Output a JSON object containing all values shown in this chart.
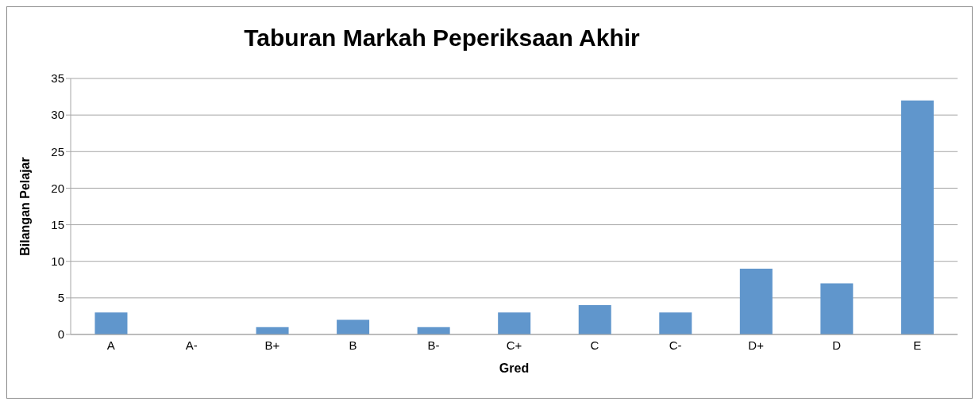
{
  "chart_data": {
    "type": "bar",
    "title": "Taburan Markah Peperiksaan Akhir",
    "xlabel": "Gred",
    "ylabel": "Bilangan Pelajar",
    "categories": [
      "A",
      "A-",
      "B+",
      "B",
      "B-",
      "C+",
      "C",
      "C-",
      "D+",
      "D",
      "E"
    ],
    "values": [
      3,
      0,
      1,
      2,
      1,
      3,
      4,
      3,
      9,
      7,
      32
    ],
    "color": "#6096cc",
    "ylim": [
      0,
      35
    ],
    "yticks": [
      0,
      5,
      10,
      15,
      20,
      25,
      30,
      35
    ],
    "grid": "y",
    "legend": false
  }
}
